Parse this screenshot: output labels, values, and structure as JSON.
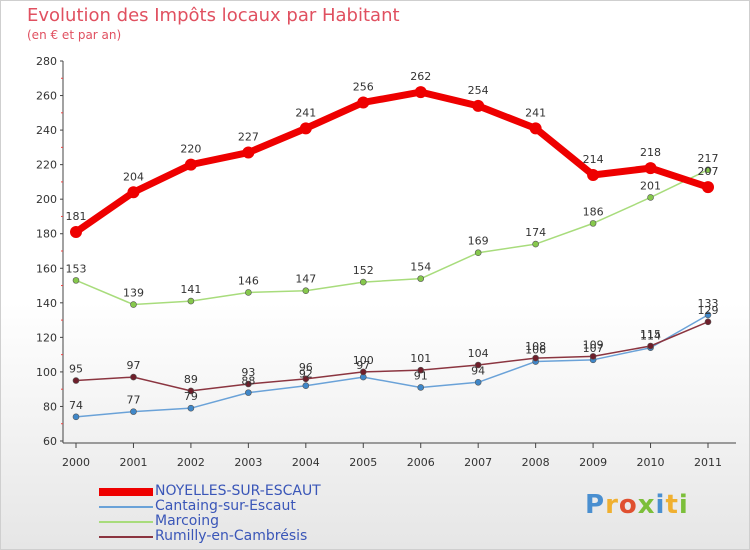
{
  "header": {
    "title": "Evolution des Impôts locaux par Habitant",
    "subtitle": "(en € et par an)"
  },
  "logo": {
    "text": "Proxiti",
    "letters": [
      {
        "ch": "P",
        "color": "#4a8fd0"
      },
      {
        "ch": "r",
        "color": "#f0b030"
      },
      {
        "ch": "o",
        "color": "#e05030"
      },
      {
        "ch": "x",
        "color": "#7cbf3a"
      },
      {
        "ch": "i",
        "color": "#4a8fd0"
      },
      {
        "ch": "t",
        "color": "#f0b030"
      },
      {
        "ch": "i",
        "color": "#7cbf3a"
      }
    ]
  },
  "chart_data": {
    "type": "line",
    "title": "Evolution des Impôts locaux par Habitant",
    "subtitle": "(en € et par an)",
    "categories": [
      "2000",
      "2001",
      "2002",
      "2003",
      "2004",
      "2005",
      "2006",
      "2007",
      "2008",
      "2009",
      "2010",
      "2011"
    ],
    "ylim": [
      60,
      280
    ],
    "yticks": [
      60,
      80,
      100,
      120,
      140,
      160,
      180,
      200,
      220,
      240,
      260,
      280
    ],
    "grid": false,
    "legend_position": "bottom-left",
    "series": [
      {
        "name": "NOYELLES-SUR-ESCAUT",
        "color": "#ee0000",
        "marker": "#ee0000",
        "width": 7,
        "values": [
          181,
          204,
          220,
          227,
          241,
          256,
          262,
          254,
          241,
          214,
          218,
          207
        ],
        "labels": [
          "181",
          "204",
          "220",
          "227",
          "241",
          "256",
          "262",
          "254",
          "241",
          "214",
          "218",
          "207"
        ]
      },
      {
        "name": "Cantaing-sur-Escaut",
        "color": "#6aa2d8",
        "marker": "#3f87c9",
        "width": 1.5,
        "values": [
          74,
          77,
          79,
          88,
          92,
          97,
          91,
          94,
          106,
          107,
          114,
          133
        ],
        "labels": [
          "74",
          "77",
          "79",
          "88",
          "92",
          "97",
          "91",
          "94",
          "106",
          "107",
          "114",
          "133"
        ]
      },
      {
        "name": "Marcoing",
        "color": "#a8dc7c",
        "marker": "#86c84c",
        "width": 1.5,
        "values": [
          153,
          139,
          141,
          146,
          147,
          152,
          154,
          169,
          174,
          186,
          201,
          217
        ],
        "labels": [
          "153",
          "139",
          "141",
          "146",
          "147",
          "152",
          "154",
          "169",
          "174",
          "186",
          "201",
          "217"
        ]
      },
      {
        "name": "Rumilly-en-Cambrésis",
        "color": "#8b3540",
        "marker": "#6e1e2a",
        "width": 1.5,
        "values": [
          95,
          97,
          89,
          93,
          96,
          100,
          101,
          104,
          108,
          109,
          115,
          129
        ],
        "labels": [
          "95",
          "97",
          "89",
          "93",
          "96",
          "100",
          "101",
          "104",
          "108",
          "109",
          "115",
          "129"
        ]
      }
    ]
  }
}
